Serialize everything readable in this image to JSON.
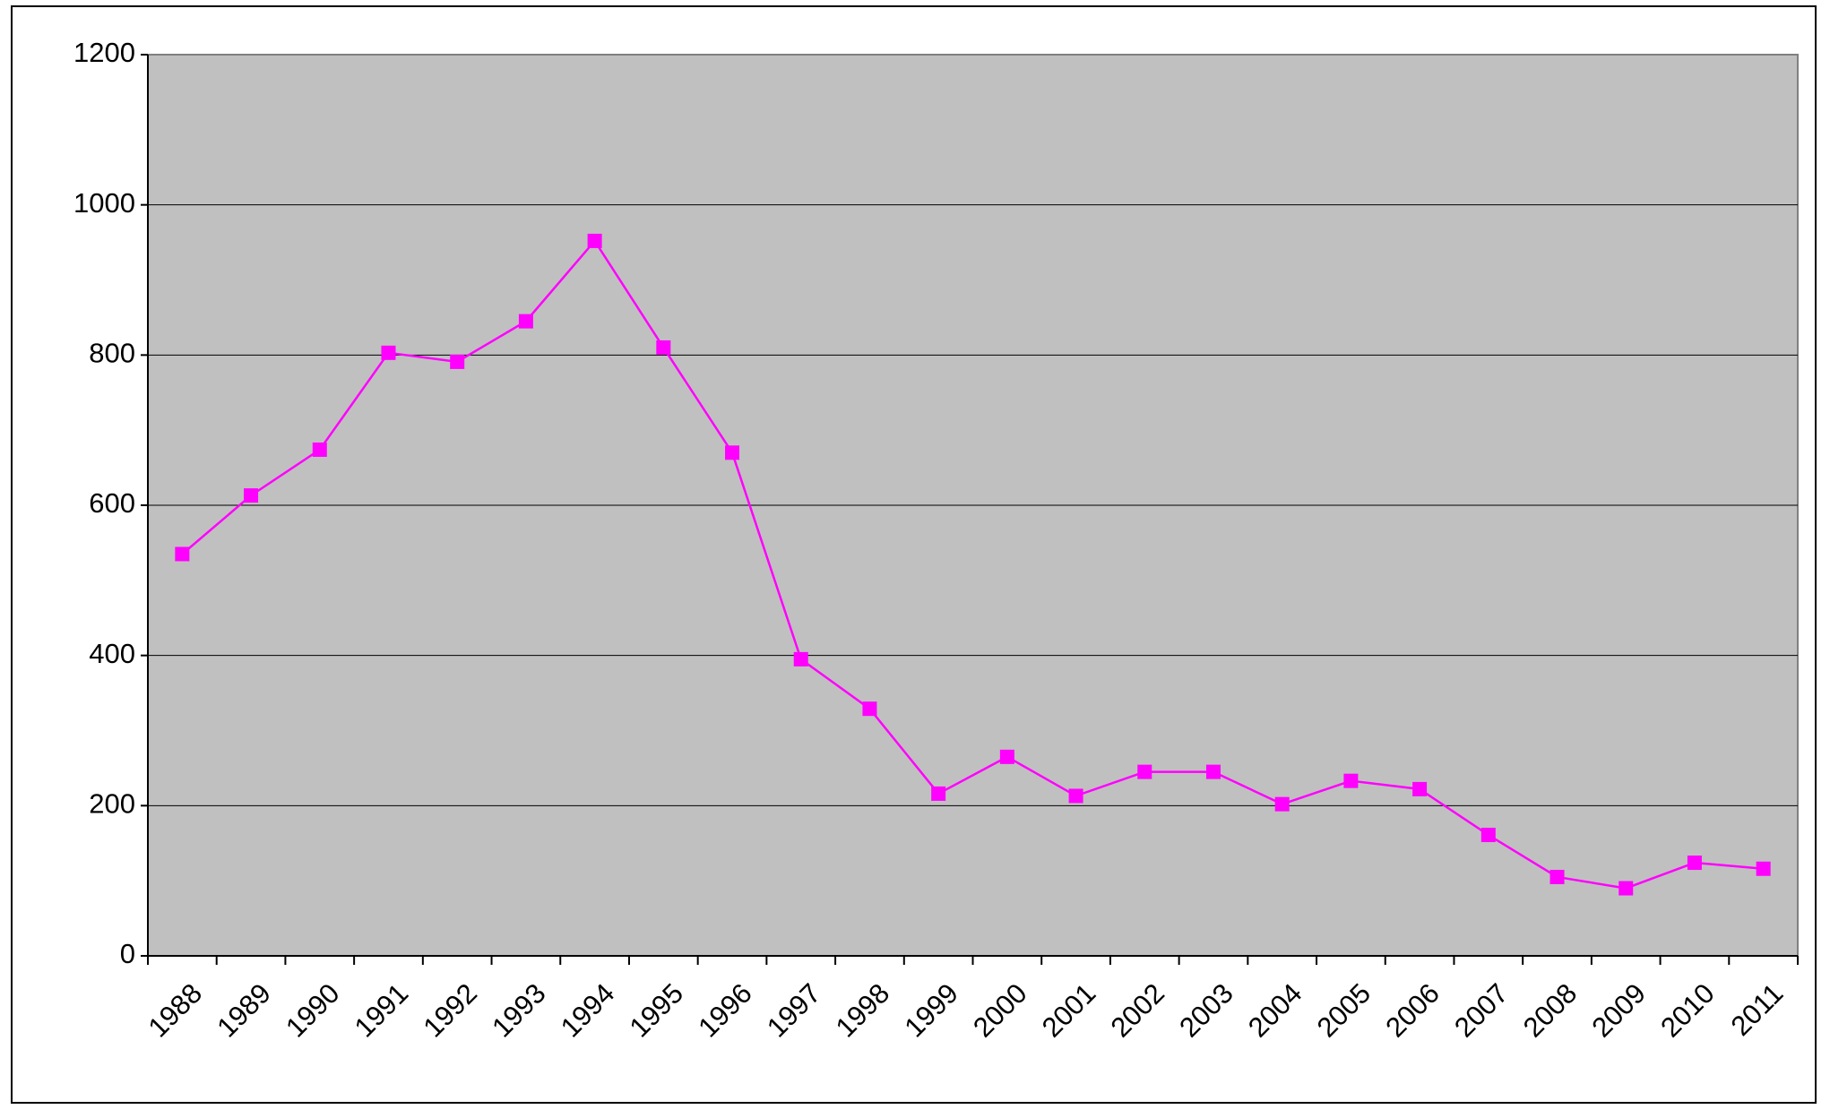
{
  "chart_data": {
    "type": "line",
    "categories": [
      "1988",
      "1989",
      "1990",
      "1991",
      "1992",
      "1993",
      "1994",
      "1995",
      "1996",
      "1997",
      "1998",
      "1999",
      "2000",
      "2001",
      "2002",
      "2003",
      "2004",
      "2005",
      "2006",
      "2007",
      "2008",
      "2009",
      "2010",
      "2011"
    ],
    "values": [
      535,
      613,
      674,
      803,
      791,
      845,
      952,
      810,
      670,
      395,
      329,
      216,
      265,
      213,
      245,
      245,
      202,
      233,
      222,
      161,
      105,
      90,
      124,
      116
    ],
    "color": "#ff00ff",
    "ylim": [
      0,
      1200
    ],
    "yticks": [
      0,
      200,
      400,
      600,
      800,
      1000,
      1200
    ],
    "grid": true
  }
}
